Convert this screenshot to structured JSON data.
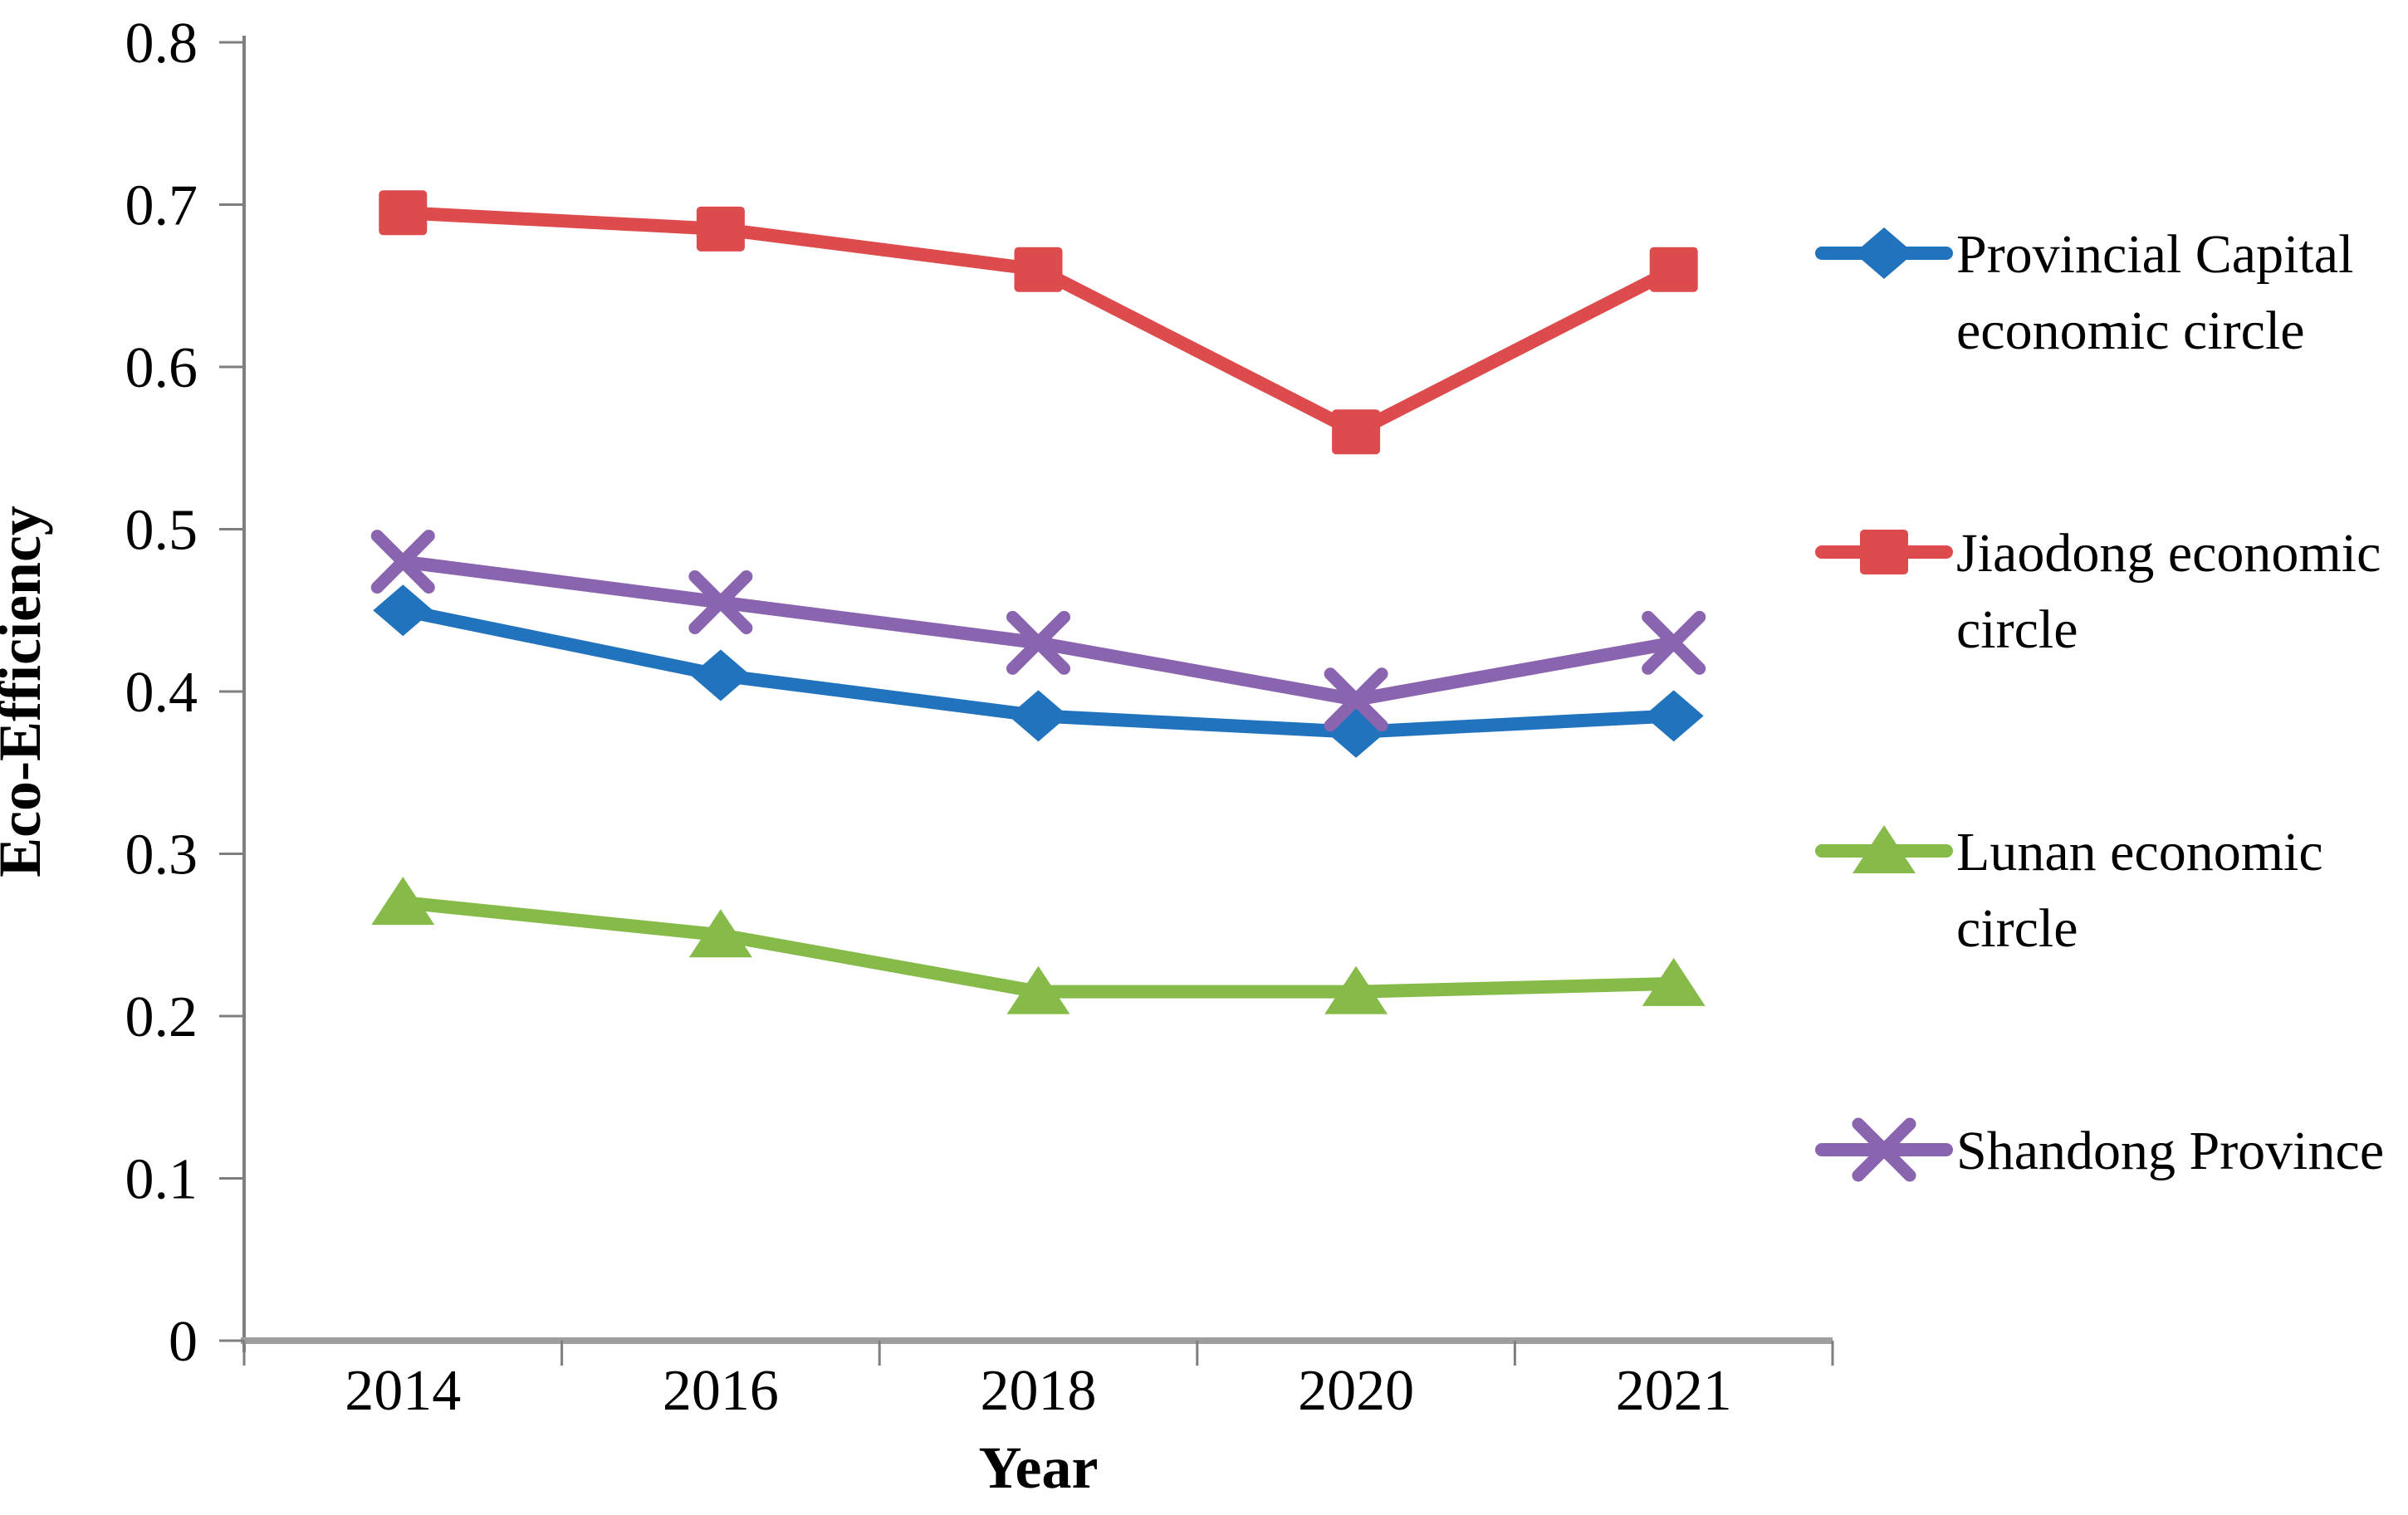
{
  "chart_data": {
    "type": "line",
    "title": "",
    "xlabel": "Year",
    "ylabel": "Eco-Efficiency",
    "categories": [
      "2014",
      "2016",
      "2018",
      "2020",
      "2021"
    ],
    "ylim": [
      0,
      0.8
    ],
    "yticks": [
      {
        "value": 0,
        "label": "0"
      },
      {
        "value": 0.1,
        "label": "0.1"
      },
      {
        "value": 0.2,
        "label": "0.2"
      },
      {
        "value": 0.3,
        "label": "0.3"
      },
      {
        "value": 0.4,
        "label": "0.4"
      },
      {
        "value": 0.5,
        "label": "0.5"
      },
      {
        "value": 0.6,
        "label": "0.6"
      },
      {
        "value": 0.7,
        "label": "0.7"
      },
      {
        "value": 0.8,
        "label": "0.8"
      }
    ],
    "grid": false,
    "legend_position": "right",
    "series": [
      {
        "name": "Provincial Capital economic circle",
        "legend_lines": [
          "Provincial Capital",
          "economic circle"
        ],
        "marker": "diamond",
        "color": "#2273BE",
        "values": [
          0.45,
          0.41,
          0.385,
          0.375,
          0.385
        ]
      },
      {
        "name": "Jiaodong economic circle",
        "legend_lines": [
          "Jiaodong economic",
          "circle"
        ],
        "marker": "square",
        "color": "#DD4B4C",
        "values": [
          0.695,
          0.685,
          0.66,
          0.56,
          0.66
        ]
      },
      {
        "name": "Lunan economic circle",
        "legend_lines": [
          "Lunan economic",
          "circle"
        ],
        "marker": "triangle",
        "color": "#86BB4A",
        "values": [
          0.27,
          0.25,
          0.215,
          0.215,
          0.22
        ]
      },
      {
        "name": "Shandong Province",
        "legend_lines": [
          "Shandong Province"
        ],
        "marker": "x",
        "color": "#8A64AE",
        "values": [
          0.48,
          0.455,
          0.43,
          0.395,
          0.43
        ]
      }
    ],
    "axis_colors": {
      "y_axis": "#7F7F7F",
      "x_axis": "#9E9E9E",
      "tick": "#7F7F7F"
    }
  }
}
